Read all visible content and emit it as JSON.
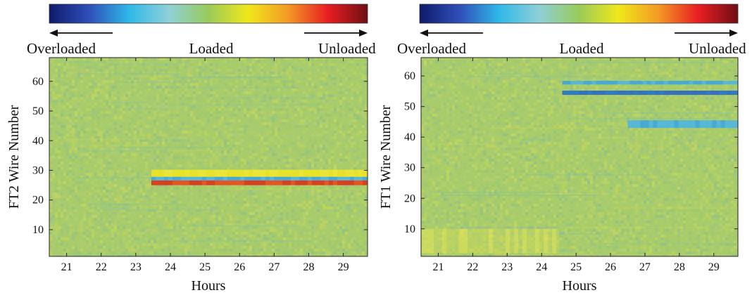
{
  "colors": {
    "colormap": [
      "#0f1a6b",
      "#2f4fb8",
      "#2fb8e8",
      "#8ed0d8",
      "#9acb5a",
      "#f0e81a",
      "#f29a24",
      "#e81e22",
      "#6e0f14"
    ],
    "field_base": "#a9cc6a",
    "axis": "#222222"
  },
  "charts": [
    {
      "legend": {
        "left": "Overloaded",
        "center": "Loaded",
        "right": "Unloaded"
      },
      "chart_data": {
        "type": "heatmap",
        "title": "",
        "xlabel": "Hours",
        "ylabel": "FT2 Wire Number",
        "xlim": [
          20.5,
          29.7
        ],
        "ylim": [
          1,
          68
        ],
        "x_ticks": [
          "21",
          "22",
          "23",
          "24",
          "25",
          "26",
          "27",
          "28",
          "29"
        ],
        "y_ticks": [
          "10",
          "20",
          "30",
          "40",
          "50",
          "60"
        ],
        "colorbar_position": "top",
        "bands": [
          {
            "y_from": 25.0,
            "y_to": 26.6,
            "x_from": 23.45,
            "x_to": 29.7,
            "level": "unloaded-high"
          },
          {
            "y_from": 27.8,
            "y_to": 30.2,
            "x_from": 23.45,
            "x_to": 29.7,
            "level": "unloaded-mild"
          },
          {
            "y_from": 26.6,
            "y_to": 27.8,
            "x_from": 23.45,
            "x_to": 29.7,
            "level": "overloaded-mild"
          }
        ]
      }
    },
    {
      "legend": {
        "left": "Overloaded",
        "center": "Loaded",
        "right": "Unloaded"
      },
      "chart_data": {
        "type": "heatmap",
        "title": "",
        "xlabel": "Hours",
        "ylabel": "FT1 Wire Number",
        "xlim": [
          20.5,
          29.7
        ],
        "ylim": [
          1,
          66
        ],
        "x_ticks": [
          "21",
          "22",
          "23",
          "24",
          "25",
          "26",
          "27",
          "28",
          "29"
        ],
        "y_ticks": [
          "10",
          "20",
          "30",
          "40",
          "50",
          "60"
        ],
        "colorbar_position": "top",
        "bands": [
          {
            "y_from": 53.8,
            "y_to": 55.2,
            "x_from": 24.6,
            "x_to": 29.7,
            "level": "overloaded-high"
          },
          {
            "y_from": 57.2,
            "y_to": 58.4,
            "x_from": 24.6,
            "x_to": 29.7,
            "level": "overloaded-mild"
          },
          {
            "y_from": 43.0,
            "y_to": 45.5,
            "x_from": 26.5,
            "x_to": 29.7,
            "level": "overloaded-mild"
          },
          {
            "y_from": 2.0,
            "y_to": 10.0,
            "x_from": 20.5,
            "x_to": 24.5,
            "level": "unloaded-faint"
          }
        ]
      }
    }
  ]
}
